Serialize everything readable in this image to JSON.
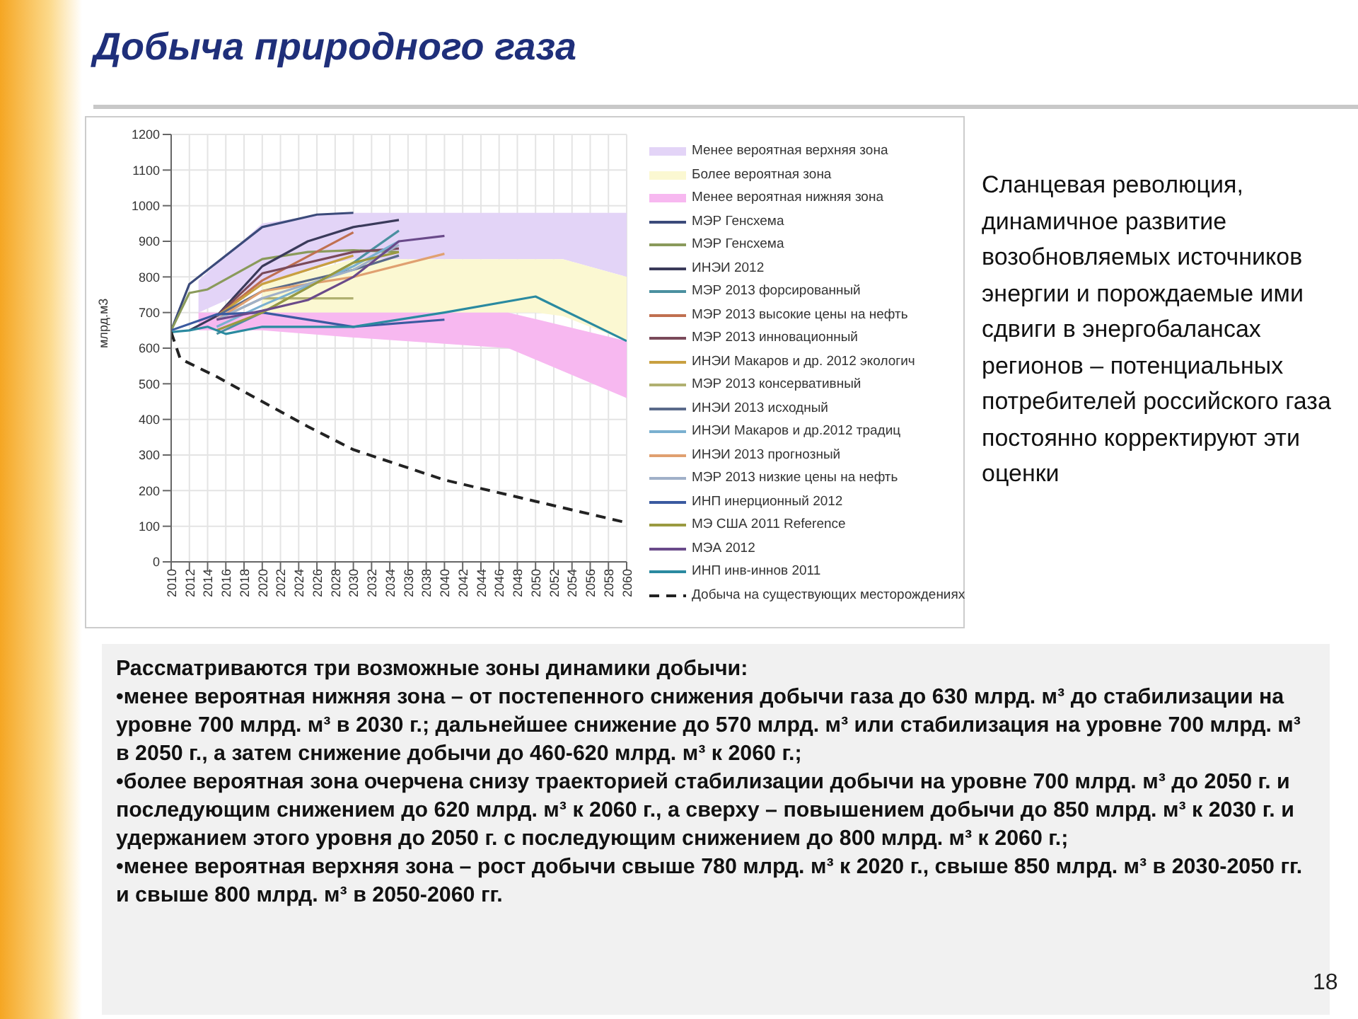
{
  "chart_data": {
    "type": "line",
    "title": "Добыча природного газа",
    "ylabel": "млрд.м3",
    "xlim": [
      2010,
      2060
    ],
    "xticks": [
      2010,
      2012,
      2014,
      2016,
      2018,
      2020,
      2022,
      2024,
      2026,
      2028,
      2030,
      2032,
      2034,
      2036,
      2038,
      2040,
      2042,
      2044,
      2046,
      2048,
      2050,
      2052,
      2054,
      2056,
      2058,
      2060
    ],
    "ylim": [
      0,
      1200
    ],
    "yticks": [
      0,
      100,
      200,
      300,
      400,
      500,
      600,
      700,
      800,
      900,
      1000,
      1100,
      1200
    ],
    "grid": true,
    "legend": "right",
    "series": [
      {
        "name": "Менее вероятная верхняя зона",
        "type": "area",
        "color": "#e3d4f7",
        "x": [
          2013,
          2020,
          2028,
          2030,
          2053,
          2060
        ],
        "values": [
          null,
          null,
          null,
          null,
          null,
          null
        ],
        "lower": [
          700,
          780,
          840,
          850,
          850,
          800
        ],
        "upper": [
          790,
          950,
          980,
          980,
          980,
          980
        ]
      },
      {
        "name": "Более вероятная зона",
        "type": "area",
        "color": "#fbf8d2",
        "x": [
          2020,
          2030,
          2050,
          2053,
          2060
        ],
        "values": [
          null,
          null,
          null,
          null,
          null
        ],
        "lower": [
          700,
          700,
          700,
          690,
          620
        ],
        "upper": [
          780,
          850,
          850,
          850,
          800
        ]
      },
      {
        "name": "Менее вероятная нижняя зона",
        "type": "area",
        "color": "#f7b8f0",
        "x": [
          2013,
          2020,
          2030,
          2047,
          2060
        ],
        "values": [
          null,
          null,
          null,
          null,
          null
        ],
        "lower": [
          650,
          650,
          630,
          600,
          460
        ],
        "upper": [
          700,
          700,
          700,
          700,
          620
        ]
      },
      {
        "name": "МЭР Генсхема",
        "color": "#3b4a7a",
        "x": [
          2010,
          2012,
          2020,
          2026,
          2030
        ],
        "values": [
          650,
          780,
          940,
          975,
          980
        ]
      },
      {
        "name": "МЭР Генсхема",
        "color": "#8a9a5b",
        "x": [
          2010,
          2012,
          2014,
          2020,
          2025,
          2030,
          2035
        ],
        "values": [
          650,
          755,
          765,
          850,
          870,
          875,
          870
        ]
      },
      {
        "name": "ИНЭИ 2012",
        "color": "#3a3a5a",
        "x": [
          2012,
          2015,
          2020,
          2025,
          2030,
          2035
        ],
        "values": [
          650,
          690,
          830,
          900,
          940,
          960
        ]
      },
      {
        "name": "МЭР 2013 форсированный",
        "color": "#4a90a0",
        "x": [
          2015,
          2020,
          2030,
          2035
        ],
        "values": [
          640,
          700,
          840,
          930
        ]
      },
      {
        "name": "МЭР 2013 высокие цены на нефть",
        "color": "#c07050",
        "x": [
          2015,
          2020,
          2030
        ],
        "values": [
          690,
          790,
          925
        ]
      },
      {
        "name": "МЭР 2013 инновационный",
        "color": "#7a4a5a",
        "x": [
          2015,
          2020,
          2030,
          2035
        ],
        "values": [
          690,
          810,
          870,
          880
        ]
      },
      {
        "name": "ИНЭИ Макаров и др. 2012 экологич",
        "color": "#c8a040",
        "x": [
          2015,
          2020,
          2030
        ],
        "values": [
          690,
          780,
          860
        ]
      },
      {
        "name": "МЭР 2013 консервативный",
        "color": "#b0b070",
        "x": [
          2015,
          2020,
          2030
        ],
        "values": [
          680,
          740,
          740
        ]
      },
      {
        "name": "ИНЭИ 2013 исходный",
        "color": "#5a6a8a",
        "x": [
          2015,
          2020,
          2030,
          2035
        ],
        "values": [
          690,
          760,
          820,
          860
        ]
      },
      {
        "name": "ИНЭИ Макаров и др.2012 традиц",
        "color": "#7ab0d0",
        "x": [
          2015,
          2020,
          2030,
          2035
        ],
        "values": [
          660,
          720,
          830,
          900
        ]
      },
      {
        "name": "ИНЭИ 2013 прогнозный",
        "color": "#e0a070",
        "x": [
          2015,
          2020,
          2030,
          2040
        ],
        "values": [
          680,
          760,
          800,
          865
        ]
      },
      {
        "name": "МЭР 2013 низкие цены на нефть",
        "color": "#a0b0c8",
        "x": [
          2015,
          2020,
          2030,
          2035
        ],
        "values": [
          680,
          740,
          820,
          890
        ]
      },
      {
        "name": "ИНП инерционный 2012",
        "color": "#3a5aa0",
        "x": [
          2010,
          2015,
          2020,
          2030,
          2040
        ],
        "values": [
          650,
          695,
          700,
          660,
          680
        ]
      },
      {
        "name": "МЭ США 2011 Reference",
        "color": "#9a9a40",
        "x": [
          2015,
          2020,
          2030,
          2035
        ],
        "values": [
          650,
          700,
          840,
          870
        ]
      },
      {
        "name": "МЭА 2012",
        "color": "#6a4a8a",
        "x": [
          2015,
          2020,
          2025,
          2030,
          2035,
          2040
        ],
        "values": [
          680,
          705,
          735,
          800,
          900,
          915
        ]
      },
      {
        "name": "ИНП инв-иннов 2011",
        "color": "#2a8aa0",
        "x": [
          2010,
          2012,
          2014,
          2016,
          2020,
          2030,
          2040,
          2050,
          2060
        ],
        "values": [
          645,
          650,
          660,
          640,
          660,
          660,
          700,
          745,
          620
        ]
      },
      {
        "name": "Добыча на существующих месторождениях",
        "color": "#222222",
        "line_style": "dashed",
        "x": [
          2010,
          2011,
          2015,
          2020,
          2025,
          2030,
          2040,
          2050,
          2060
        ],
        "values": [
          645,
          570,
          520,
          450,
          380,
          315,
          230,
          170,
          110
        ]
      }
    ],
    "annotations": [
      "Сланцевая революция, динамичное развитие возобновляемых источников энергии и порождаемые ими сдвиги в энергобалансах регионов – потенциальных потребителей российского газа постоянно корректируют эти оценки",
      "Рассматриваются три возможные зоны динамики добычи:",
      "•менее вероятная нижняя зона – от постепенного снижения добычи газа до 630 млрд. м³ до стабилизации на уровне 700 млрд. м³ в 2030 г.; дальнейшее снижение до 570 млрд. м³ или стабилизация на уровне 700 млрд. м³ в 2050 г., а затем снижение добычи до 460-620 млрд. м³ к 2060 г.;",
      "•более вероятная зона очерчена снизу траекторией стабилизации добычи на уровне 700 млрд. м³ до 2050 г. и последующим снижением до 620 млрд. м³ к 2060 г., а сверху – повышением добычи до 850 млрд. м³ к 2030 г. и удержанием этого уровня до 2050 г. с последующим снижением до 800 млрд. м³ к 2060 г.;",
      "•менее вероятная верхняя зона – рост добычи свыше 780 млрд. м³ к 2020 г., свыше 850 млрд. м³ в 2030-2050 гг. и свыше 800 млрд. м³ в 2050-2060 гг.",
      "18"
    ]
  }
}
